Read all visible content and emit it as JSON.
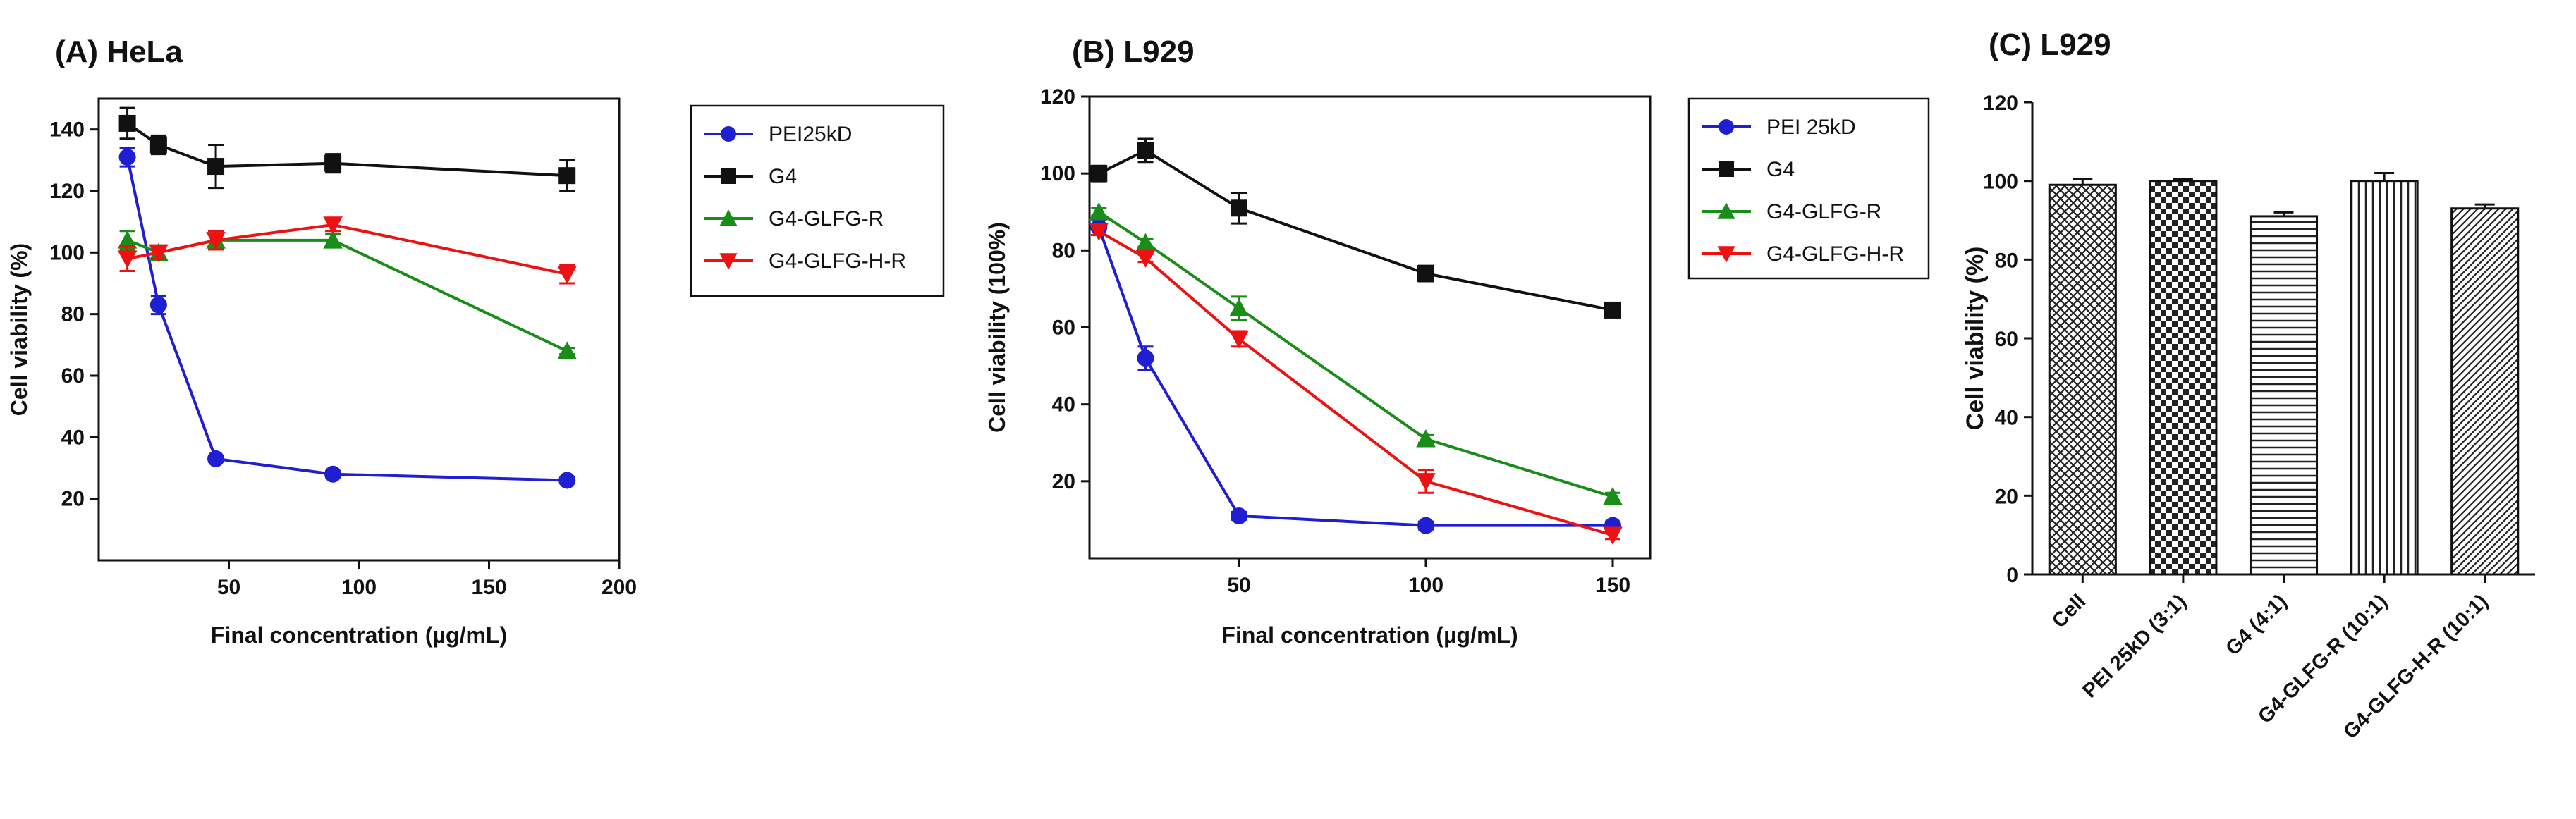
{
  "chart_data": [
    {
      "panel_label": "(A) HeLa",
      "type": "line",
      "xlabel": "Final concentration (µg/mL)",
      "ylabel": "Cell viability (%)",
      "xlim": [
        0,
        200
      ],
      "ylim": [
        0,
        150
      ],
      "xticks": [
        {
          "value": 50,
          "label": "50"
        },
        {
          "value": 100,
          "label": "100"
        },
        {
          "value": 150,
          "label": "150"
        },
        {
          "value": 200,
          "label": "200"
        }
      ],
      "yticks": [
        {
          "value": 20,
          "label": "20"
        },
        {
          "value": 40,
          "label": "40"
        },
        {
          "value": 60,
          "label": "60"
        },
        {
          "value": 80,
          "label": "80"
        },
        {
          "value": 100,
          "label": "100"
        },
        {
          "value": 120,
          "label": "120"
        },
        {
          "value": 140,
          "label": "140"
        }
      ],
      "grid": false,
      "legend_position": "right",
      "series": [
        {
          "name": "PEI25kD",
          "color": "#1f1fd1",
          "marker": "circle",
          "x": [
            11,
            23,
            45,
            90,
            180
          ],
          "y": [
            131,
            83,
            33,
            28,
            26
          ],
          "err": [
            3,
            3,
            1,
            1,
            1
          ]
        },
        {
          "name": "G4",
          "color": "#111111",
          "marker": "square",
          "x": [
            11,
            23,
            45,
            90,
            180
          ],
          "y": [
            142,
            135,
            128,
            129,
            125
          ],
          "err": [
            5,
            3,
            7,
            3,
            5
          ]
        },
        {
          "name": "G4-GLFG-R",
          "color": "#1a8c1a",
          "marker": "triangle-up",
          "x": [
            11,
            23,
            45,
            90,
            180
          ],
          "y": [
            104,
            100,
            104,
            104,
            68
          ],
          "err": [
            3,
            2,
            2,
            2,
            1
          ]
        },
        {
          "name": "G4-GLFG-H-R",
          "color": "#ee1111",
          "marker": "triangle-down",
          "x": [
            11,
            23,
            45,
            90,
            180
          ],
          "y": [
            98,
            100,
            104,
            109,
            93
          ],
          "err": [
            4,
            2,
            3,
            2,
            3
          ]
        }
      ]
    },
    {
      "panel_label": "(B) L929",
      "type": "line",
      "xlabel": "Final concentration (µg/mL)",
      "ylabel": "Cell viability (100%)",
      "xlim": [
        10,
        160
      ],
      "ylim": [
        0,
        120
      ],
      "xticks": [
        {
          "value": 50,
          "label": "50"
        },
        {
          "value": 100,
          "label": "100"
        },
        {
          "value": 150,
          "label": "150"
        }
      ],
      "yticks": [
        {
          "value": 20,
          "label": "20"
        },
        {
          "value": 40,
          "label": "40"
        },
        {
          "value": 60,
          "label": "60"
        },
        {
          "value": 80,
          "label": "80"
        },
        {
          "value": 100,
          "label": "100"
        },
        {
          "value": 120,
          "label": "120"
        }
      ],
      "grid": false,
      "legend_position": "right",
      "series": [
        {
          "name": "PEI 25kD",
          "color": "#1f1fd1",
          "marker": "circle",
          "x": [
            12.5,
            25,
            50,
            100,
            150
          ],
          "y": [
            86,
            52,
            11,
            8.5,
            8.5
          ],
          "err": [
            2,
            3,
            1,
            1,
            1
          ]
        },
        {
          "name": "G4",
          "color": "#111111",
          "marker": "square",
          "x": [
            12.5,
            25,
            50,
            100,
            150
          ],
          "y": [
            100,
            106,
            91,
            74,
            64.5
          ],
          "err": [
            2,
            3,
            4,
            2,
            1
          ]
        },
        {
          "name": "G4-GLFG-R",
          "color": "#1a8c1a",
          "marker": "triangle-up",
          "x": [
            12.5,
            25,
            50,
            100,
            150
          ],
          "y": [
            90,
            82,
            65,
            31,
            16
          ],
          "err": [
            1,
            1,
            3,
            1,
            1
          ]
        },
        {
          "name": "G4-GLFG-H-R",
          "color": "#ee1111",
          "marker": "triangle-down",
          "x": [
            12.5,
            25,
            50,
            100,
            150
          ],
          "y": [
            85,
            78,
            57,
            20,
            6
          ],
          "err": [
            1,
            1,
            2,
            3,
            1
          ]
        }
      ]
    },
    {
      "panel_label": "(C) L929",
      "type": "bar",
      "ylabel": "Cell viability (%)",
      "ylim": [
        0,
        120
      ],
      "yticks": [
        {
          "value": 0,
          "label": "0"
        },
        {
          "value": 20,
          "label": "20"
        },
        {
          "value": 40,
          "label": "40"
        },
        {
          "value": 60,
          "label": "60"
        },
        {
          "value": 80,
          "label": "80"
        },
        {
          "value": 100,
          "label": "100"
        },
        {
          "value": 120,
          "label": "120"
        }
      ],
      "grid": false,
      "categories": [
        "Cell",
        "PEI 25kD (3:1)",
        "G4 (4:1)",
        "G4-GLFG-R (10:1)",
        "G4-GLFG-H-R (10:1)"
      ],
      "values": [
        99,
        100,
        91,
        100,
        93
      ],
      "err": [
        1.5,
        0.5,
        1,
        2,
        1
      ],
      "patterns": [
        "crosshatch",
        "checker",
        "horizontal",
        "vertical",
        "diagonal"
      ]
    }
  ]
}
